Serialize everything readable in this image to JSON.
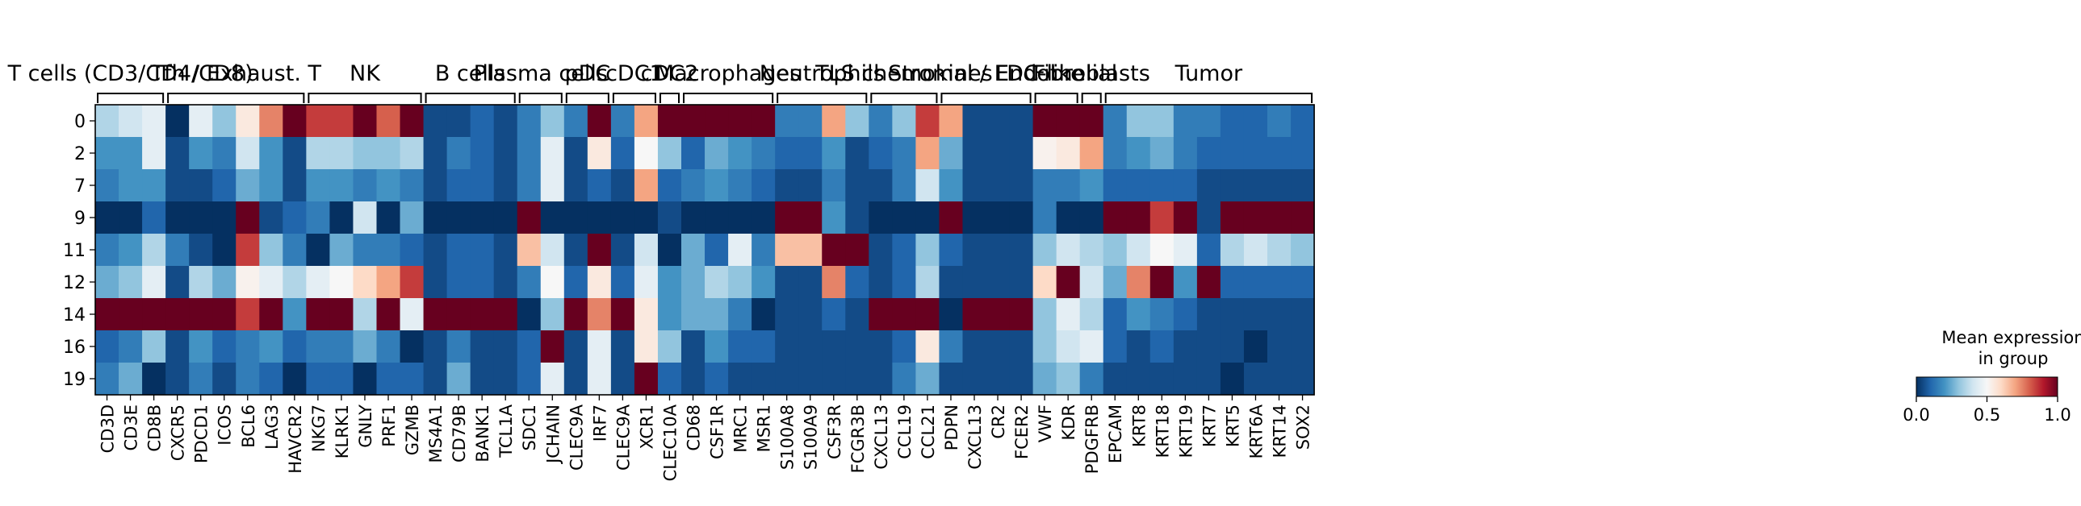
{
  "chart_data": {
    "type": "heatmap",
    "rows": [
      "0",
      "2",
      "7",
      "9",
      "11",
      "12",
      "14",
      "16",
      "19"
    ],
    "genes": [
      "CD3D",
      "CD3E",
      "CD8B",
      "CXCR5",
      "PDCD1",
      "ICOS",
      "BCL6",
      "LAG3",
      "HAVCR2",
      "NKG7",
      "KLRK1",
      "GNLY",
      "PRF1",
      "GZMB",
      "MS4A1",
      "CD79B",
      "BANK1",
      "TCL1A",
      "SDC1",
      "JCHAIN",
      "CLEC9A",
      "IRF7",
      "CLEC9A",
      "XCR1",
      "CLEC10A",
      "CD68",
      "CSF1R",
      "MRC1",
      "MSR1",
      "S100A8",
      "S100A9",
      "CSF3R",
      "FCGR3B",
      "CXCL13",
      "CCL19",
      "CCL21",
      "PDPN",
      "CXCL13",
      "CR2",
      "FCER2",
      "VWF",
      "KDR",
      "PDGFRB",
      "EPCAM",
      "KRT8",
      "KRT18",
      "KRT19",
      "KRT7",
      "KRT5",
      "KRT6A",
      "KRT14",
      "SOX2"
    ],
    "groups": [
      {
        "label": "T cells (CD3/CD4/CD8)",
        "start": 0,
        "end": 2
      },
      {
        "label": "Tfh / Exhaust. T",
        "start": 3,
        "end": 8
      },
      {
        "label": "NK",
        "start": 9,
        "end": 13
      },
      {
        "label": "B cells",
        "start": 14,
        "end": 17
      },
      {
        "label": "Plasma cells",
        "start": 18,
        "end": 19
      },
      {
        "label": "pDC",
        "start": 20,
        "end": 21
      },
      {
        "label": "cDC1",
        "start": 22,
        "end": 23
      },
      {
        "label": "cDC2",
        "start": 24,
        "end": 24
      },
      {
        "label": "Macrophages",
        "start": 25,
        "end": 28
      },
      {
        "label": "Neutrophils",
        "start": 29,
        "end": 32
      },
      {
        "label": "TLS chemokines",
        "start": 33,
        "end": 35
      },
      {
        "label": "Stromal / FDC-like",
        "start": 36,
        "end": 39
      },
      {
        "label": "Endothelial",
        "start": 40,
        "end": 41
      },
      {
        "label": "Fibroblasts",
        "start": 42,
        "end": 42
      },
      {
        "label": "Tumor",
        "start": 43,
        "end": 51
      }
    ],
    "values": [
      [
        0.35,
        0.4,
        0.45,
        0.0,
        0.45,
        0.3,
        0.55,
        0.75,
        1.0,
        0.85,
        0.85,
        1.0,
        0.8,
        1.0,
        0.05,
        0.05,
        0.1,
        0.05,
        0.15,
        0.3,
        0.15,
        1.0,
        0.15,
        0.7,
        1.0,
        1.0,
        1.0,
        1.0,
        1.0,
        0.15,
        0.15,
        0.7,
        0.3,
        0.15,
        0.3,
        0.85,
        0.7,
        0.05,
        0.05,
        0.05,
        1.0,
        1.0,
        1.0,
        0.15,
        0.3,
        0.3,
        0.15,
        0.15,
        0.1,
        0.1,
        0.15,
        0.1
      ],
      [
        0.2,
        0.2,
        0.45,
        0.05,
        0.2,
        0.15,
        0.4,
        0.2,
        0.05,
        0.35,
        0.35,
        0.3,
        0.3,
        0.35,
        0.05,
        0.15,
        0.1,
        0.05,
        0.15,
        0.45,
        0.05,
        0.55,
        0.1,
        0.5,
        0.3,
        0.1,
        0.25,
        0.2,
        0.15,
        0.1,
        0.1,
        0.2,
        0.05,
        0.1,
        0.15,
        0.7,
        0.25,
        0.05,
        0.05,
        0.05,
        0.52,
        0.55,
        0.7,
        0.15,
        0.2,
        0.25,
        0.15,
        0.1,
        0.1,
        0.1,
        0.1,
        0.1
      ],
      [
        0.15,
        0.2,
        0.2,
        0.05,
        0.05,
        0.1,
        0.25,
        0.2,
        0.05,
        0.2,
        0.2,
        0.15,
        0.2,
        0.15,
        0.05,
        0.1,
        0.1,
        0.05,
        0.15,
        0.45,
        0.05,
        0.1,
        0.05,
        0.7,
        0.1,
        0.15,
        0.2,
        0.15,
        0.1,
        0.05,
        0.05,
        0.15,
        0.05,
        0.05,
        0.15,
        0.4,
        0.2,
        0.05,
        0.05,
        0.05,
        0.15,
        0.15,
        0.2,
        0.1,
        0.1,
        0.1,
        0.1,
        0.05,
        0.05,
        0.05,
        0.05,
        0.05
      ],
      [
        0.0,
        0.0,
        0.1,
        0.0,
        0.0,
        0.0,
        1.0,
        0.05,
        0.1,
        0.15,
        0.0,
        0.4,
        0.0,
        0.25,
        0.0,
        0.0,
        0.0,
        0.0,
        1.0,
        0.0,
        0.0,
        0.0,
        0.0,
        0.0,
        0.05,
        0.0,
        0.0,
        0.0,
        0.0,
        1.0,
        1.0,
        0.2,
        0.05,
        0.0,
        0.0,
        0.0,
        1.0,
        0.0,
        0.0,
        0.0,
        0.15,
        0.0,
        0.0,
        1.0,
        1.0,
        0.85,
        1.0,
        0.05,
        1.0,
        1.0,
        1.0,
        1.0
      ],
      [
        0.15,
        0.2,
        0.35,
        0.15,
        0.05,
        0.0,
        0.85,
        0.3,
        0.15,
        0.0,
        0.25,
        0.15,
        0.15,
        0.1,
        0.05,
        0.1,
        0.1,
        0.05,
        0.65,
        0.4,
        0.05,
        1.0,
        0.05,
        0.4,
        0.0,
        0.25,
        0.1,
        0.45,
        0.15,
        0.65,
        0.65,
        1.0,
        1.0,
        0.05,
        0.1,
        0.3,
        0.1,
        0.05,
        0.05,
        0.05,
        0.3,
        0.4,
        0.35,
        0.3,
        0.4,
        0.5,
        0.45,
        0.1,
        0.35,
        0.4,
        0.35,
        0.3
      ],
      [
        0.25,
        0.3,
        0.45,
        0.05,
        0.35,
        0.25,
        0.52,
        0.45,
        0.35,
        0.45,
        0.5,
        0.6,
        0.7,
        0.85,
        0.05,
        0.1,
        0.1,
        0.05,
        0.15,
        0.5,
        0.1,
        0.55,
        0.1,
        0.45,
        0.2,
        0.25,
        0.35,
        0.3,
        0.2,
        0.05,
        0.05,
        0.75,
        0.1,
        0.05,
        0.1,
        0.35,
        0.05,
        0.05,
        0.05,
        0.05,
        0.6,
        1.0,
        0.4,
        0.25,
        0.75,
        1.0,
        0.2,
        1.0,
        0.1,
        0.1,
        0.1,
        0.1
      ],
      [
        1.0,
        1.0,
        1.0,
        1.0,
        1.0,
        1.0,
        0.85,
        1.0,
        0.2,
        1.0,
        1.0,
        0.35,
        1.0,
        0.45,
        1.0,
        1.0,
        1.0,
        1.0,
        0.0,
        0.3,
        1.0,
        0.75,
        1.0,
        0.55,
        0.2,
        0.25,
        0.25,
        0.15,
        0.0,
        0.05,
        0.05,
        0.1,
        0.05,
        1.0,
        1.0,
        1.0,
        0.0,
        1.0,
        1.0,
        1.0,
        0.3,
        0.45,
        0.35,
        0.1,
        0.2,
        0.15,
        0.1,
        0.05,
        0.05,
        0.05,
        0.05,
        0.05
      ],
      [
        0.1,
        0.15,
        0.3,
        0.05,
        0.2,
        0.1,
        0.15,
        0.2,
        0.1,
        0.15,
        0.15,
        0.25,
        0.15,
        0.0,
        0.05,
        0.15,
        0.05,
        0.05,
        0.1,
        1.0,
        0.05,
        0.45,
        0.05,
        0.55,
        0.3,
        0.05,
        0.2,
        0.1,
        0.1,
        0.05,
        0.05,
        0.05,
        0.05,
        0.05,
        0.1,
        0.55,
        0.15,
        0.05,
        0.05,
        0.05,
        0.3,
        0.4,
        0.45,
        0.1,
        0.05,
        0.1,
        0.05,
        0.05,
        0.05,
        0.0,
        0.05,
        0.05
      ],
      [
        0.15,
        0.25,
        0.0,
        0.05,
        0.15,
        0.05,
        0.15,
        0.1,
        0.0,
        0.1,
        0.1,
        0.0,
        0.1,
        0.1,
        0.05,
        0.25,
        0.05,
        0.05,
        0.1,
        0.45,
        0.05,
        0.45,
        0.05,
        1.0,
        0.1,
        0.05,
        0.1,
        0.05,
        0.05,
        0.05,
        0.05,
        0.05,
        0.05,
        0.05,
        0.15,
        0.25,
        0.05,
        0.05,
        0.05,
        0.05,
        0.25,
        0.3,
        0.15,
        0.05,
        0.05,
        0.05,
        0.05,
        0.05,
        0.0,
        0.05,
        0.05,
        0.05
      ]
    ],
    "colorbar": {
      "title": "Mean expression\nin group",
      "ticks": [
        "0.0",
        "0.5",
        "1.0"
      ],
      "range": [
        0,
        1
      ],
      "colormap": "RdBu_r"
    }
  }
}
